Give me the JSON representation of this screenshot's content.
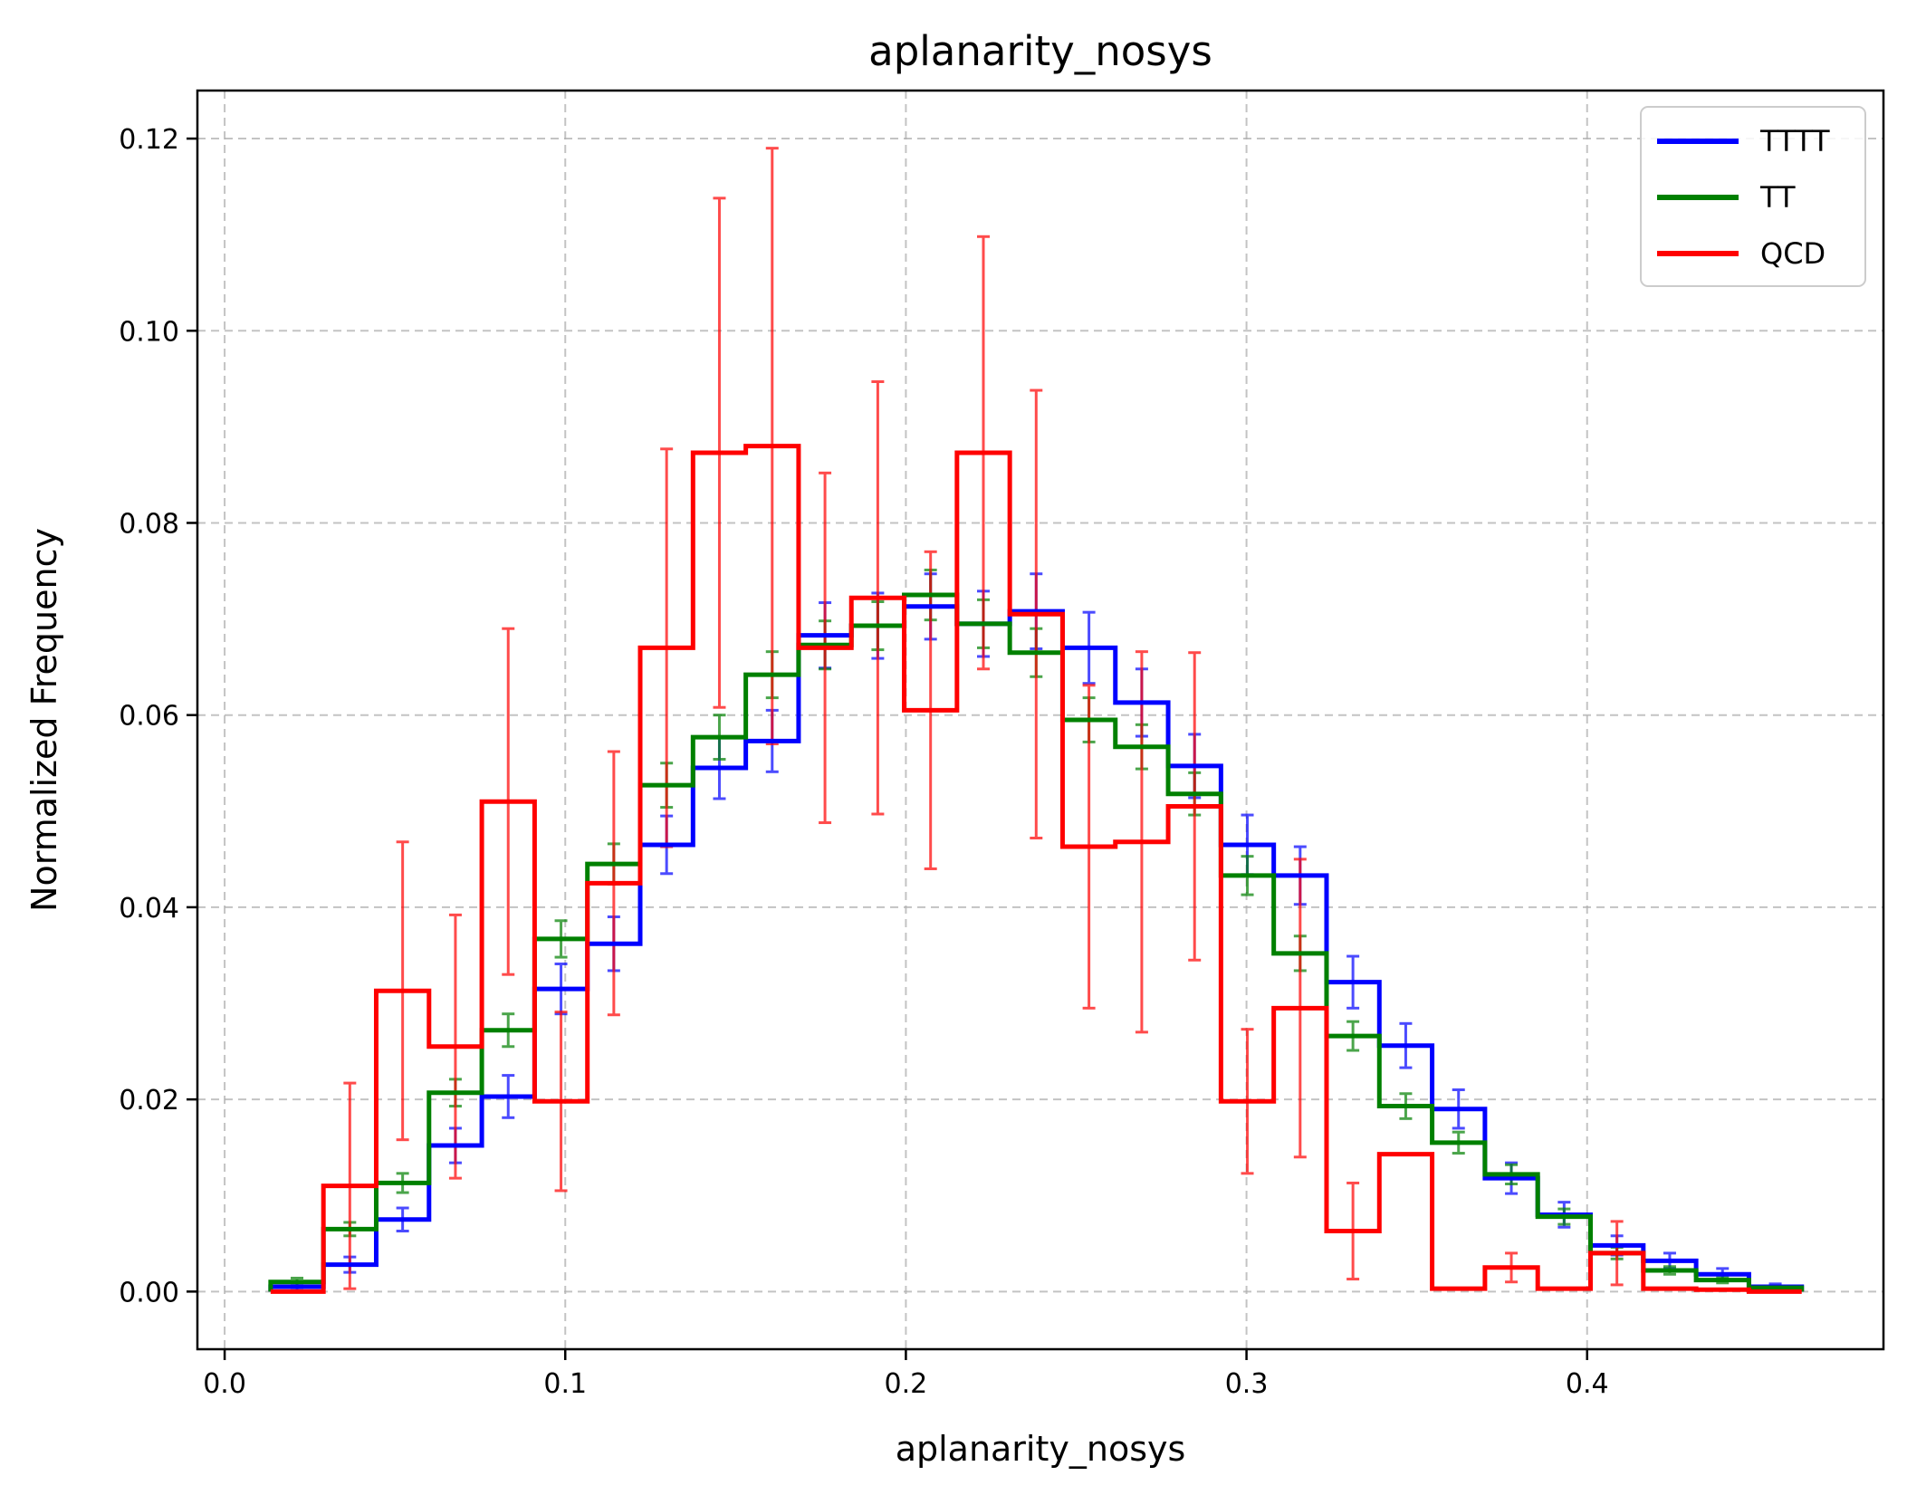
{
  "chart_data": {
    "type": "line",
    "title": "aplanarity_nosys",
    "xlabel": "aplanarity_nosys",
    "ylabel": "Normalized Frequency",
    "xlim": [
      -0.008,
      0.487
    ],
    "ylim": [
      -0.006,
      0.125
    ],
    "xticks": [
      0.0,
      0.1,
      0.2,
      0.3,
      0.4
    ],
    "xtick_labels": [
      "0.0",
      "0.1",
      "0.2",
      "0.3",
      "0.4"
    ],
    "yticks": [
      0.0,
      0.02,
      0.04,
      0.06,
      0.08,
      0.1,
      0.12
    ],
    "ytick_labels": [
      "0.00",
      "0.02",
      "0.04",
      "0.06",
      "0.08",
      "0.10",
      "0.12"
    ],
    "grid": true,
    "legend_position": "top-right",
    "bin_edges": [
      0.0135,
      0.029,
      0.0445,
      0.06,
      0.0755,
      0.091,
      0.1065,
      0.122,
      0.1375,
      0.153,
      0.1685,
      0.184,
      0.1995,
      0.215,
      0.2305,
      0.246,
      0.2615,
      0.277,
      0.2925,
      0.308,
      0.3235,
      0.339,
      0.3545,
      0.37,
      0.3855,
      0.401,
      0.4165,
      0.432,
      0.4475,
      0.463
    ],
    "series": [
      {
        "name": "TTTT",
        "color": "#0000ff",
        "values": [
          0.0005,
          0.0028,
          0.0075,
          0.0152,
          0.0203,
          0.0315,
          0.0362,
          0.0465,
          0.0545,
          0.0573,
          0.0683,
          0.0693,
          0.0713,
          0.0695,
          0.0708,
          0.067,
          0.0613,
          0.0547,
          0.0465,
          0.0433,
          0.0322,
          0.0256,
          0.019,
          0.0118,
          0.008,
          0.0048,
          0.0032,
          0.0018,
          0.0005
        ],
        "errors": [
          0.0004,
          0.0008,
          0.0012,
          0.0018,
          0.0022,
          0.0026,
          0.0028,
          0.003,
          0.0032,
          0.0032,
          0.0034,
          0.0034,
          0.0034,
          0.0034,
          0.0039,
          0.0037,
          0.0035,
          0.0033,
          0.0031,
          0.003,
          0.0027,
          0.0023,
          0.002,
          0.0016,
          0.0013,
          0.001,
          0.0008,
          0.0006,
          0.0003
        ]
      },
      {
        "name": "TT",
        "color": "#008000",
        "values": [
          0.001,
          0.0065,
          0.0113,
          0.0207,
          0.0272,
          0.0367,
          0.0445,
          0.0527,
          0.0577,
          0.0642,
          0.0673,
          0.0693,
          0.0725,
          0.0695,
          0.0665,
          0.0595,
          0.0567,
          0.0518,
          0.0433,
          0.0352,
          0.0266,
          0.0193,
          0.0155,
          0.0122,
          0.0078,
          0.004,
          0.0022,
          0.0012,
          0.0004
        ],
        "errors": [
          0.0004,
          0.0007,
          0.001,
          0.0014,
          0.0017,
          0.0019,
          0.0021,
          0.0023,
          0.0023,
          0.0024,
          0.0025,
          0.0025,
          0.0026,
          0.0025,
          0.0025,
          0.0023,
          0.0023,
          0.0022,
          0.002,
          0.0018,
          0.0015,
          0.0013,
          0.0011,
          0.001,
          0.0008,
          0.0006,
          0.0004,
          0.0003,
          0.0002
        ]
      },
      {
        "name": "QCD",
        "color": "#ff0000",
        "values": [
          0.0,
          0.011,
          0.0313,
          0.0255,
          0.051,
          0.0198,
          0.0425,
          0.067,
          0.0873,
          0.088,
          0.067,
          0.0722,
          0.0605,
          0.0873,
          0.0705,
          0.0463,
          0.0468,
          0.0505,
          0.0198,
          0.0295,
          0.0063,
          0.0143,
          0.0003,
          0.0025,
          0.0003,
          0.004,
          0.0003,
          0.0002,
          0.0
        ],
        "errors": [
          0.0,
          0.0107,
          0.0155,
          0.0137,
          0.018,
          0.0093,
          0.0137,
          0.0207,
          0.0265,
          0.031,
          0.0182,
          0.0225,
          0.0165,
          0.0225,
          0.0233,
          0.0168,
          0.0198,
          0.016,
          0.0075,
          0.0155,
          0.005,
          0.0,
          0.0,
          0.0015,
          0.0,
          0.0033,
          0.0,
          0.0,
          0.0
        ]
      }
    ]
  }
}
